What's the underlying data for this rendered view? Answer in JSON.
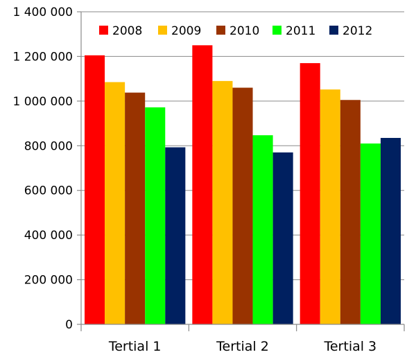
{
  "chart_data": {
    "type": "bar",
    "title": "",
    "xlabel": "",
    "ylabel": "",
    "categories": [
      "Tertial 1",
      "Tertial 2",
      "Tertial 3"
    ],
    "ylim": [
      0,
      1400000
    ],
    "yticks": [
      0,
      200000,
      400000,
      600000,
      800000,
      1000000,
      1200000,
      1400000
    ],
    "ytick_labels": [
      "0",
      "200 000",
      "400 000",
      "600 000",
      "800 000",
      "1 000 000",
      "1 200 000",
      "1 400 000"
    ],
    "grid": true,
    "legend_position": "top",
    "series": [
      {
        "name": "2008",
        "color": "#ff0000",
        "values": [
          1205000,
          1250000,
          1170000
        ]
      },
      {
        "name": "2009",
        "color": "#ffc000",
        "values": [
          1085000,
          1090000,
          1052000
        ]
      },
      {
        "name": "2010",
        "color": "#993300",
        "values": [
          1038000,
          1060000,
          1005000
        ]
      },
      {
        "name": "2011",
        "color": "#00ff00",
        "values": [
          972000,
          847000,
          810000
        ]
      },
      {
        "name": "2012",
        "color": "#002060",
        "values": [
          793000,
          770000,
          835000
        ]
      }
    ]
  }
}
